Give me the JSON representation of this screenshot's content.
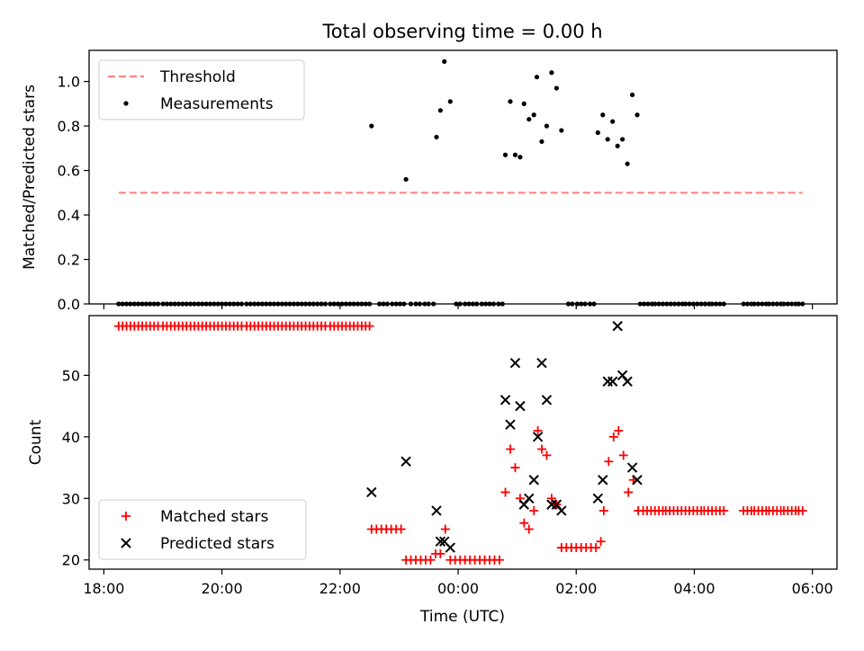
{
  "chart_data": [
    {
      "type": "scatter",
      "title": "Total observing time = 0.00 h",
      "xlabel": "",
      "ylabel": "Matched/Predicted stars",
      "xlim": [
        "17:45",
        "06:25"
      ],
      "ylim": [
        0.0,
        1.14
      ],
      "yticks": [
        "0.0",
        "0.2",
        "0.4",
        "0.6",
        "0.8",
        "1.0"
      ],
      "xticks_labels_visible": false,
      "grid": false,
      "legend": "top-left",
      "threshold": {
        "name": "Threshold",
        "value": 0.5,
        "x_range": [
          "18:15",
          "05:50"
        ],
        "color": "#ff7f7f",
        "style": "dashed"
      },
      "series": [
        {
          "name": "Measurements",
          "color": "#000000",
          "marker": "dot",
          "points": [
            [
              "22:32",
              0.8
            ],
            [
              "23:07",
              0.56
            ],
            [
              "23:38",
              0.75
            ],
            [
              "23:42",
              0.87
            ],
            [
              "23:46",
              1.09
            ],
            [
              "23:52",
              0.91
            ],
            [
              "00:48",
              0.67
            ],
            [
              "00:53",
              0.91
            ],
            [
              "00:58",
              0.67
            ],
            [
              "01:03",
              0.66
            ],
            [
              "01:07",
              0.9
            ],
            [
              "01:12",
              0.83
            ],
            [
              "01:17",
              0.85
            ],
            [
              "01:20",
              1.02
            ],
            [
              "01:25",
              0.73
            ],
            [
              "01:30",
              0.8
            ],
            [
              "01:35",
              1.04
            ],
            [
              "01:40",
              0.97
            ],
            [
              "01:45",
              0.78
            ],
            [
              "02:22",
              0.77
            ],
            [
              "02:27",
              0.85
            ],
            [
              "02:32",
              0.74
            ],
            [
              "02:37",
              0.82
            ],
            [
              "02:42",
              0.71
            ],
            [
              "02:47",
              0.74
            ],
            [
              "02:52",
              0.63
            ],
            [
              "02:57",
              0.94
            ],
            [
              "03:02",
              0.85
            ]
          ],
          "zero_ranges": [
            [
              "18:15",
              "22:30",
              64
            ],
            [
              "22:40",
              "23:05",
              7
            ],
            [
              "23:12",
              "23:35",
              6
            ],
            [
              "23:58",
              "00:45",
              12
            ],
            [
              "01:52",
              "02:18",
              7
            ],
            [
              "03:05",
              "04:30",
              23
            ],
            [
              "04:50",
              "05:50",
              17
            ]
          ]
        }
      ]
    },
    {
      "type": "scatter",
      "title": "",
      "xlabel": "Time (UTC)",
      "ylabel": "Count",
      "xlim": [
        "17:45",
        "06:25"
      ],
      "ylim": [
        18.5,
        59.7
      ],
      "yticks": [
        "20",
        "30",
        "40",
        "50"
      ],
      "xticks": [
        "18:00",
        "20:00",
        "22:00",
        "00:00",
        "02:00",
        "04:00",
        "06:00"
      ],
      "grid": false,
      "legend": "bottom-left",
      "series": [
        {
          "name": "Matched stars",
          "color": "#ff0000",
          "marker": "plus",
          "points": [
            [
              "22:32",
              25
            ],
            [
              "22:37",
              25
            ],
            [
              "22:42",
              25
            ],
            [
              "22:47",
              25
            ],
            [
              "22:52",
              25
            ],
            [
              "22:57",
              25
            ],
            [
              "23:02",
              25
            ],
            [
              "23:07",
              20
            ],
            [
              "23:12",
              20
            ],
            [
              "23:17",
              20
            ],
            [
              "23:22",
              20
            ],
            [
              "23:27",
              20
            ],
            [
              "23:32",
              20
            ],
            [
              "23:37",
              21
            ],
            [
              "23:42",
              21
            ],
            [
              "23:47",
              25
            ],
            [
              "23:52",
              20
            ],
            [
              "23:57",
              20
            ],
            [
              "00:02",
              20
            ],
            [
              "00:07",
              20
            ],
            [
              "00:12",
              20
            ],
            [
              "00:17",
              20
            ],
            [
              "00:22",
              20
            ],
            [
              "00:27",
              20
            ],
            [
              "00:32",
              20
            ],
            [
              "00:37",
              20
            ],
            [
              "00:42",
              20
            ],
            [
              "00:48",
              31
            ],
            [
              "00:53",
              38
            ],
            [
              "00:58",
              35
            ],
            [
              "01:03",
              30
            ],
            [
              "01:07",
              26
            ],
            [
              "01:12",
              25
            ],
            [
              "01:17",
              28
            ],
            [
              "01:21",
              41
            ],
            [
              "01:25",
              38
            ],
            [
              "01:30",
              37
            ],
            [
              "01:35",
              30
            ],
            [
              "01:40",
              29
            ],
            [
              "01:45",
              22
            ],
            [
              "01:50",
              22
            ],
            [
              "01:55",
              22
            ],
            [
              "02:00",
              22
            ],
            [
              "02:05",
              22
            ],
            [
              "02:10",
              22
            ],
            [
              "02:15",
              22
            ],
            [
              "02:20",
              22
            ],
            [
              "02:25",
              23
            ],
            [
              "02:28",
              28
            ],
            [
              "02:33",
              36
            ],
            [
              "02:38",
              40
            ],
            [
              "02:43",
              41
            ],
            [
              "02:48",
              37
            ],
            [
              "02:53",
              31
            ],
            [
              "02:58",
              33
            ],
            [
              "03:03",
              28
            ]
          ],
          "const_ranges": [
            [
              "18:15",
              "22:30",
              58,
              64
            ],
            [
              "03:08",
              "04:30",
              28,
              22
            ],
            [
              "04:50",
              "05:50",
              28,
              17
            ]
          ]
        },
        {
          "name": "Predicted stars",
          "color": "#000000",
          "marker": "x",
          "points": [
            [
              "22:32",
              31
            ],
            [
              "23:07",
              36
            ],
            [
              "23:38",
              28
            ],
            [
              "23:42",
              23
            ],
            [
              "23:46",
              23
            ],
            [
              "23:52",
              22
            ],
            [
              "00:48",
              46
            ],
            [
              "00:53",
              42
            ],
            [
              "00:58",
              52
            ],
            [
              "01:03",
              45
            ],
            [
              "01:07",
              29
            ],
            [
              "01:12",
              30
            ],
            [
              "01:17",
              33
            ],
            [
              "01:21",
              40
            ],
            [
              "01:25",
              52
            ],
            [
              "01:30",
              46
            ],
            [
              "01:35",
              29
            ],
            [
              "01:40",
              29
            ],
            [
              "01:45",
              28
            ],
            [
              "02:22",
              30
            ],
            [
              "02:27",
              33
            ],
            [
              "02:32",
              49
            ],
            [
              "02:37",
              49
            ],
            [
              "02:42",
              58
            ],
            [
              "02:47",
              50
            ],
            [
              "02:52",
              49
            ],
            [
              "02:57",
              35
            ],
            [
              "03:02",
              33
            ]
          ]
        }
      ]
    }
  ]
}
